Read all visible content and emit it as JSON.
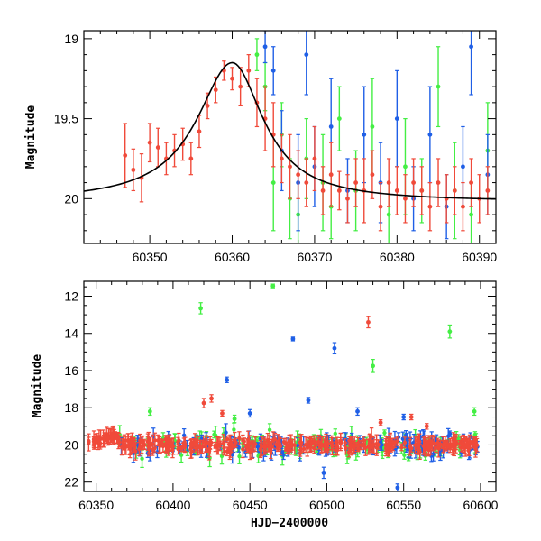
{
  "chart_data": [
    {
      "type": "scatter",
      "panel": "top",
      "xlabel": "",
      "ylabel": "Magnitude",
      "xlim": [
        60342,
        60392
      ],
      "ylim": [
        20.28,
        18.95
      ],
      "y_inverted": true,
      "xticks": [
        60350,
        60360,
        60370,
        60380,
        60390
      ],
      "yticks": [
        19,
        19.5,
        20
      ],
      "ytick_labels": [
        "19",
        "19.5",
        "20"
      ],
      "grid": false,
      "colors": {
        "red": "#f04a3a",
        "green": "#44ee44",
        "blue": "#1f5fe6",
        "model": "#000000"
      },
      "model_curve": {
        "type": "peak",
        "peak_x": 60360,
        "peak_y": 19.15,
        "baseline_y": 20.02
      },
      "series": [
        {
          "color": "red",
          "points": [
            [
              60347,
              19.73,
              0.2
            ],
            [
              60348,
              19.82,
              0.13
            ],
            [
              60349,
              19.87,
              0.15
            ],
            [
              60350,
              19.65,
              0.12
            ],
            [
              60351,
              19.68,
              0.12
            ],
            [
              60352,
              19.75,
              0.1
            ],
            [
              60353,
              19.7,
              0.1
            ],
            [
              60354,
              19.66,
              0.1
            ],
            [
              60355,
              19.75,
              0.1
            ],
            [
              60356,
              19.58,
              0.1
            ],
            [
              60357,
              19.42,
              0.08
            ],
            [
              60358,
              19.32,
              0.08
            ],
            [
              60359,
              19.2,
              0.06
            ],
            [
              60360,
              19.25,
              0.07
            ],
            [
              60361,
              19.3,
              0.12
            ],
            [
              60362,
              19.2,
              0.1
            ],
            [
              60363,
              19.4,
              0.15
            ],
            [
              60364,
              19.5,
              0.2
            ],
            [
              60365,
              19.6,
              0.2
            ],
            [
              60366,
              19.75,
              0.15
            ],
            [
              60367,
              19.8,
              0.2
            ],
            [
              60368,
              19.85,
              0.15
            ],
            [
              60369,
              19.9,
              0.15
            ],
            [
              60370,
              19.75,
              0.2
            ],
            [
              60371,
              19.95,
              0.15
            ],
            [
              60372,
              19.85,
              0.2
            ],
            [
              60373,
              19.95,
              0.12
            ],
            [
              60374,
              20.0,
              0.15
            ],
            [
              60375,
              19.9,
              0.15
            ],
            [
              60376,
              19.95,
              0.2
            ],
            [
              60377,
              19.85,
              0.15
            ],
            [
              60378,
              20.05,
              0.15
            ],
            [
              60379,
              19.9,
              0.15
            ],
            [
              60380,
              19.95,
              0.15
            ],
            [
              60381,
              20.0,
              0.15
            ],
            [
              60382,
              19.9,
              0.15
            ],
            [
              60383,
              19.95,
              0.15
            ],
            [
              60384,
              20.05,
              0.15
            ],
            [
              60385,
              19.9,
              0.15
            ],
            [
              60386,
              20.0,
              0.15
            ],
            [
              60387,
              19.95,
              0.15
            ],
            [
              60388,
              20.05,
              0.15
            ],
            [
              60389,
              19.9,
              0.15
            ],
            [
              60390,
              20.0,
              0.15
            ],
            [
              60391,
              19.95,
              0.15
            ]
          ]
        },
        {
          "color": "green",
          "points": [
            [
              60363,
              19.1,
              0.1
            ],
            [
              60364,
              19.3,
              0.15
            ],
            [
              60365,
              19.9,
              0.3
            ],
            [
              60366,
              19.6,
              0.2
            ],
            [
              60367,
              20.0,
              0.25
            ],
            [
              60368,
              20.1,
              0.2
            ],
            [
              60369,
              19.75,
              0.25
            ],
            [
              60371,
              19.9,
              0.3
            ],
            [
              60372,
              20.05,
              0.2
            ],
            [
              60373,
              19.5,
              0.2
            ],
            [
              60375,
              19.95,
              0.25
            ],
            [
              60377,
              19.55,
              0.3
            ],
            [
              60379,
              20.1,
              0.2
            ],
            [
              60381,
              19.8,
              0.3
            ],
            [
              60383,
              19.95,
              0.2
            ],
            [
              60385,
              19.3,
              0.25
            ],
            [
              60387,
              19.95,
              0.3
            ],
            [
              60389,
              20.1,
              0.2
            ],
            [
              60391,
              19.7,
              0.3
            ]
          ]
        },
        {
          "color": "blue",
          "points": [
            [
              60364,
              19.05,
              0.1
            ],
            [
              60365,
              19.2,
              0.15
            ],
            [
              60366,
              19.7,
              0.25
            ],
            [
              60368,
              19.9,
              0.3
            ],
            [
              60369,
              19.1,
              0.25
            ],
            [
              60370,
              19.8,
              0.25
            ],
            [
              60372,
              19.55,
              0.3
            ],
            [
              60374,
              19.95,
              0.2
            ],
            [
              60376,
              19.6,
              0.3
            ],
            [
              60378,
              19.9,
              0.25
            ],
            [
              60380,
              19.5,
              0.3
            ],
            [
              60382,
              20.0,
              0.2
            ],
            [
              60384,
              19.6,
              0.3
            ],
            [
              60386,
              20.05,
              0.2
            ],
            [
              60388,
              19.8,
              0.25
            ],
            [
              60389,
              19.05,
              0.3
            ],
            [
              60391,
              19.85,
              0.25
            ]
          ]
        }
      ]
    },
    {
      "type": "scatter",
      "panel": "bottom",
      "xlabel": "HJD−2400000",
      "ylabel": "Magnitude",
      "xlim": [
        60342,
        60610
      ],
      "ylim": [
        22.5,
        11.2
      ],
      "y_inverted": true,
      "xticks": [
        60350,
        60400,
        60450,
        60500,
        60550,
        60600
      ],
      "yticks": [
        12,
        14,
        16,
        18,
        20,
        22
      ],
      "ytick_labels": [
        "12",
        "14",
        "16",
        "18",
        "20",
        "22"
      ],
      "grid": false,
      "baseline_band": {
        "x_range": [
          60345,
          60598
        ],
        "center": 20.0,
        "scatter": 0.45
      },
      "series": [
        {
          "color": "red",
          "outliers": [
            [
              60420,
              17.75,
              0.25
            ],
            [
              60425,
              17.5,
              0.2
            ],
            [
              60432,
              18.3,
              0.15
            ],
            [
              60527,
              13.4,
              0.3
            ],
            [
              60535,
              18.8,
              0.15
            ],
            [
              60555,
              18.5,
              0.15
            ],
            [
              60565,
              19.0,
              0.15
            ]
          ]
        },
        {
          "color": "green",
          "outliers": [
            [
              60385,
              18.2,
              0.2
            ],
            [
              60418,
              12.65,
              0.3
            ],
            [
              60465,
              11.45,
              0.1
            ],
            [
              60530,
              15.75,
              0.35
            ],
            [
              60580,
              13.9,
              0.35
            ],
            [
              60596,
              18.2,
              0.2
            ],
            [
              60440,
              18.6,
              0.2
            ]
          ]
        },
        {
          "color": "blue",
          "outliers": [
            [
              60435,
              16.5,
              0.15
            ],
            [
              60450,
              18.3,
              0.2
            ],
            [
              60478,
              14.3,
              0.1
            ],
            [
              60488,
              17.6,
              0.15
            ],
            [
              60505,
              14.8,
              0.3
            ],
            [
              60520,
              18.2,
              0.2
            ],
            [
              60550,
              18.5,
              0.15
            ],
            [
              60580,
              19.4,
              0.15
            ],
            [
              60546,
              22.3,
              0.2
            ],
            [
              60498,
              21.5,
              0.3
            ]
          ]
        }
      ]
    }
  ]
}
